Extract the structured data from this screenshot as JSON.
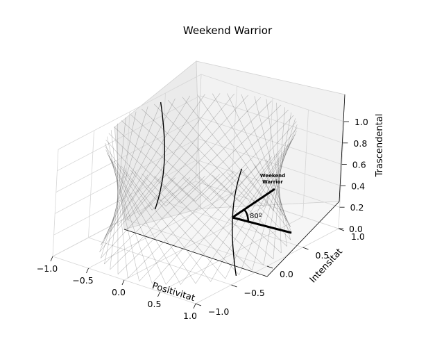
{
  "chart_data": {
    "type": "surface3d",
    "title": "Weekend Warrior",
    "xlabel": "Positivitat",
    "ylabel": "Intensitat",
    "zlabel": "Trascendental",
    "xlim": [
      -1.0,
      1.0
    ],
    "ylim": [
      -1.0,
      1.0
    ],
    "zlim": [
      0.0,
      1.0
    ],
    "x_ticks": [
      "−1.0",
      "−0.5",
      "0.0",
      "0.5",
      "1.0"
    ],
    "y_ticks": [
      "−1.0",
      "−0.5",
      "0.0",
      "0.5",
      "1.0"
    ],
    "z_ticks": [
      "0.0",
      "0.2",
      "0.4",
      "0.6",
      "0.8",
      "1.0"
    ],
    "grid": true,
    "surface": {
      "shape": "hyperboloid of one sheet (twisted lattice of straight lines)",
      "radius_at_base": 0.95,
      "radius_at_waist": 0.8,
      "radius_at_top": 0.95,
      "z_range": [
        0.0,
        1.0
      ],
      "color": "#000000",
      "line_opacity": 0.25
    },
    "vectors": [
      {
        "direction": "horizontal",
        "angle_deg": 0
      },
      {
        "direction": "elevated",
        "angle_deg": 80
      }
    ],
    "annotations": {
      "angle_label": "80º",
      "point_label_line1": "Weekend",
      "point_label_line2": "Warrior"
    }
  }
}
